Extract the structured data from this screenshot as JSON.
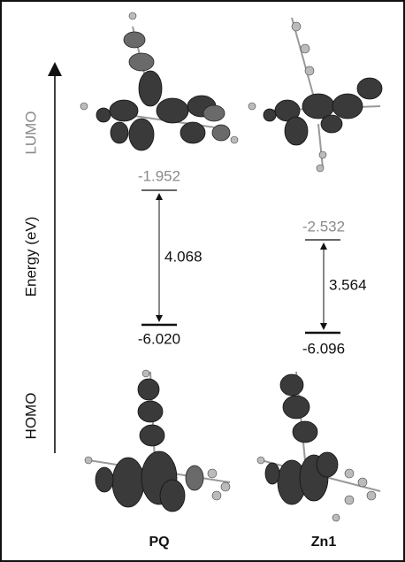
{
  "axis_label": "Energy (eV)",
  "lumo_label": "LUMO",
  "homo_label": "HOMO",
  "columns": [
    {
      "name": "PQ",
      "lumo": "-1.952",
      "homo": "-6.020",
      "gap": "4.068"
    },
    {
      "name": "Zn1",
      "lumo": "-2.532",
      "homo": "-6.096",
      "gap": "3.564"
    }
  ]
}
